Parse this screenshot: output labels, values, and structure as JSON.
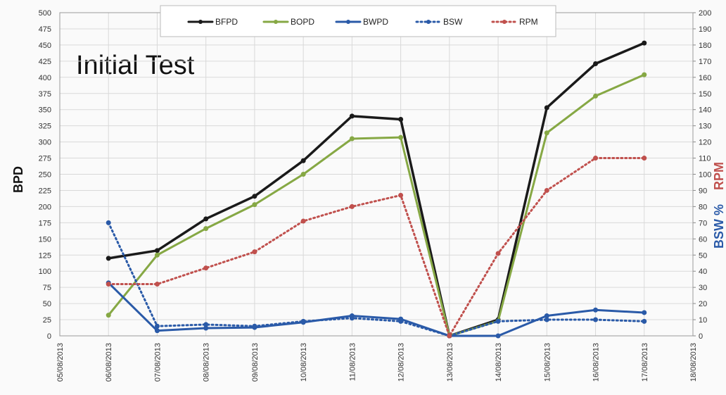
{
  "chart_data": {
    "type": "line",
    "annotation": "Initial Test",
    "y_label": "BPD",
    "y2_label_parts": [
      "BSW %",
      "RPM"
    ],
    "categories": [
      "05/08/2013",
      "06/08/2013",
      "07/08/2013",
      "08/08/2013",
      "09/08/2013",
      "10/08/2013",
      "11/08/2013",
      "12/08/2013",
      "13/08/2013",
      "14/08/2013",
      "15/08/2013",
      "16/08/2013",
      "17/08/2013",
      "18/08/2013"
    ],
    "series": [
      {
        "name": "BFPD",
        "color": "#1a1a1a",
        "style": "solid",
        "values": [
          null,
          120,
          132,
          181,
          216,
          271,
          340,
          335,
          0,
          25,
          353,
          421,
          453,
          null
        ]
      },
      {
        "name": "BOPD",
        "color": "#86a844",
        "style": "solid",
        "values": [
          null,
          32,
          125,
          166,
          203,
          250,
          305,
          307,
          0,
          23,
          314,
          371,
          404,
          null
        ]
      },
      {
        "name": "BWPD",
        "color": "#2a5aa8",
        "style": "solid",
        "values": [
          null,
          82,
          8,
          12,
          13,
          21,
          31,
          26,
          0,
          0,
          31,
          40,
          36,
          null
        ]
      },
      {
        "name": "BSW",
        "color": "#2a5aa8",
        "style": "dotted",
        "axis": "y2",
        "values": [
          null,
          70,
          6,
          7,
          6,
          9,
          11,
          9,
          0,
          9,
          10,
          10,
          9,
          null
        ]
      },
      {
        "name": "RPM",
        "color": "#c0504d",
        "style": "dotted",
        "axis": "y2",
        "values": [
          null,
          32,
          32,
          42,
          52,
          71,
          80,
          87,
          0,
          51,
          90,
          110,
          110,
          null
        ]
      }
    ],
    "ylim": [
      0,
      500
    ],
    "yticks": [
      0,
      25,
      50,
      75,
      100,
      125,
      150,
      175,
      200,
      225,
      250,
      275,
      300,
      325,
      350,
      375,
      400,
      425,
      450,
      475,
      500
    ],
    "y2lim": [
      0,
      200
    ],
    "y2ticks": [
      0,
      10,
      20,
      30,
      40,
      50,
      60,
      70,
      80,
      90,
      100,
      110,
      120,
      130,
      140,
      150,
      160,
      170,
      180,
      190,
      200
    ],
    "grid": true,
    "legend": "top"
  }
}
